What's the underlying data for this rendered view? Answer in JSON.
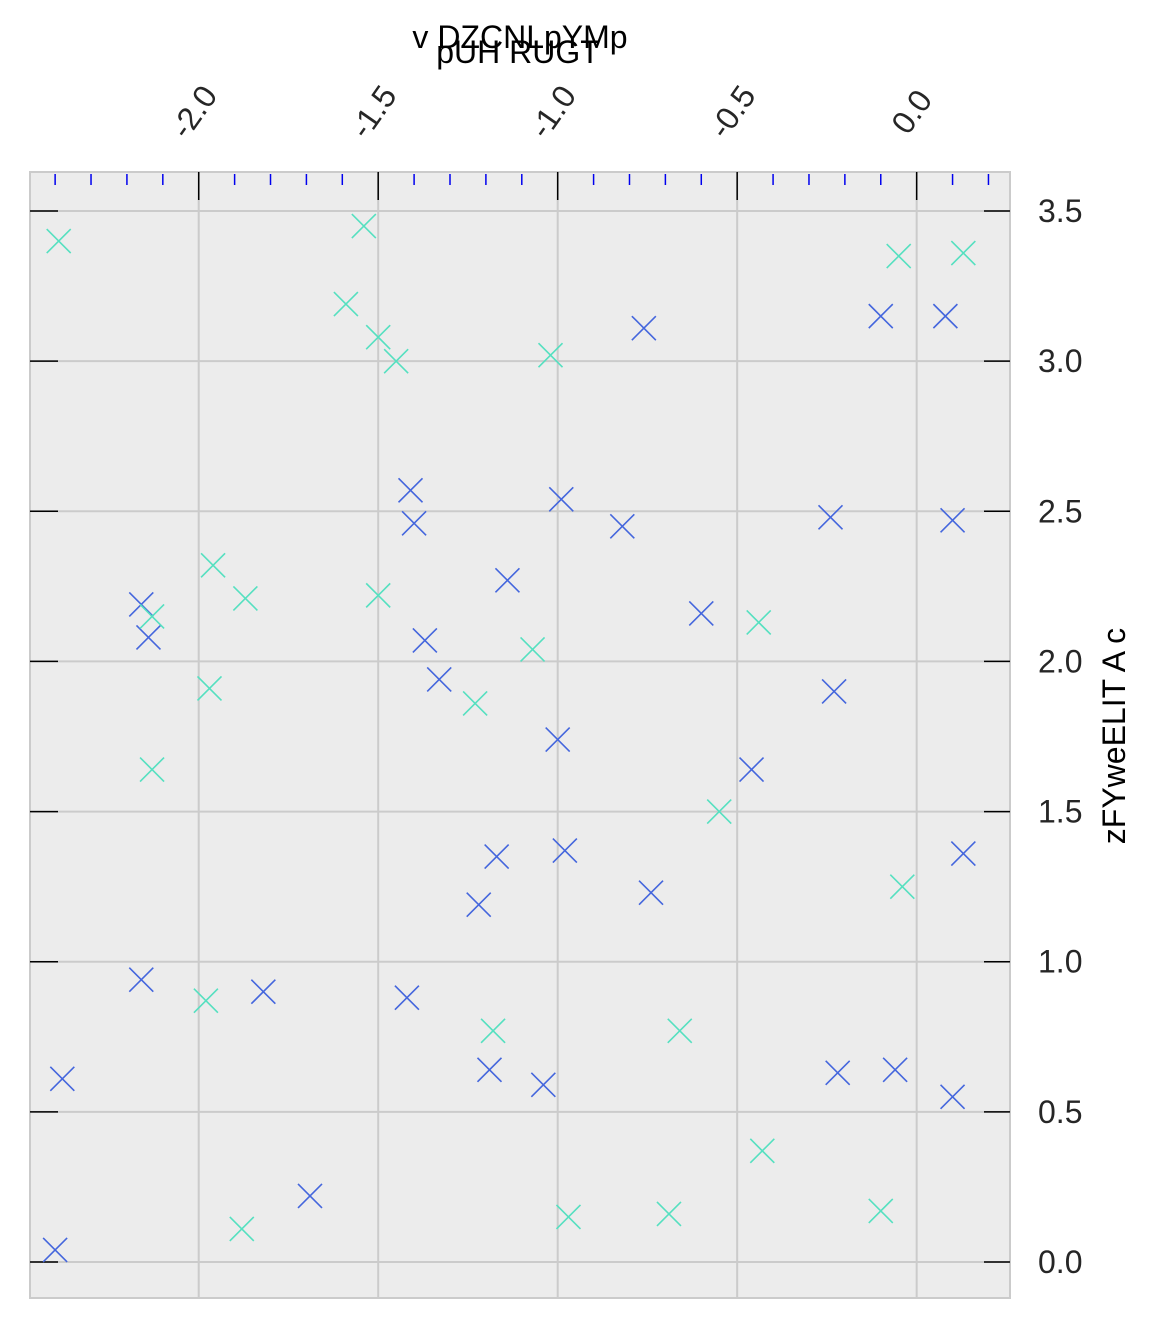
{
  "chart_data": {
    "type": "scatter",
    "title": "pUH RUGT",
    "xlabel": "v DZCNLpYMp",
    "ylabel": "zFYweELIT A c",
    "x_axis_position": "top",
    "y_axis_position": "right",
    "xlim": [
      -2.47,
      0.26
    ],
    "ylim": [
      -0.12,
      3.63
    ],
    "x_ticks": [
      -2.0,
      -1.5,
      -1.0,
      -0.5,
      0.0
    ],
    "x_tick_labels": [
      "-2.0",
      "-1.5",
      "-1.0",
      "-0.5",
      "0.0"
    ],
    "y_ticks": [
      0.0,
      0.5,
      1.0,
      1.5,
      2.0,
      2.5,
      3.0,
      3.5
    ],
    "y_tick_labels": [
      "0.0",
      "0.5",
      "1.0",
      "1.5",
      "2.0",
      "2.5",
      "3.0",
      "3.5"
    ],
    "x_minor_step": 0.1,
    "grid": true,
    "marker": "x",
    "colors": {
      "background": "#ececec",
      "grid": "#cbcbcb",
      "minor_tick": "#0000ee",
      "series_blue": "#4466dd",
      "series_cyan": "#55e0c0"
    },
    "series": [
      {
        "color": "#4466dd",
        "points": [
          [
            -2.4,
            0.04
          ],
          [
            -2.38,
            0.61
          ],
          [
            -2.16,
            0.94
          ],
          [
            -2.16,
            2.19
          ],
          [
            -2.14,
            2.08
          ],
          [
            -1.82,
            0.9
          ],
          [
            -1.69,
            0.22
          ],
          [
            -1.42,
            0.88
          ],
          [
            -1.41,
            2.57
          ],
          [
            -1.4,
            2.46
          ],
          [
            -1.37,
            2.07
          ],
          [
            -1.33,
            1.94
          ],
          [
            -1.22,
            1.19
          ],
          [
            -1.19,
            0.64
          ],
          [
            -1.17,
            1.35
          ],
          [
            -1.14,
            2.27
          ],
          [
            -1.04,
            0.59
          ],
          [
            -1.0,
            1.74
          ],
          [
            -0.99,
            2.54
          ],
          [
            -0.98,
            1.37
          ],
          [
            -0.82,
            2.45
          ],
          [
            -0.76,
            3.11
          ],
          [
            -0.74,
            1.23
          ],
          [
            -0.6,
            2.16
          ],
          [
            -0.46,
            1.64
          ],
          [
            -0.24,
            2.48
          ],
          [
            -0.23,
            1.9
          ],
          [
            -0.22,
            0.63
          ],
          [
            -0.1,
            3.15
          ],
          [
            -0.06,
            0.64
          ],
          [
            0.08,
            3.15
          ],
          [
            0.1,
            2.47
          ],
          [
            0.1,
            0.55
          ],
          [
            0.13,
            1.36
          ]
        ]
      },
      {
        "color": "#55e0c0",
        "points": [
          [
            -2.39,
            3.4
          ],
          [
            -2.13,
            1.64
          ],
          [
            -2.13,
            2.15
          ],
          [
            -1.98,
            0.87
          ],
          [
            -1.97,
            1.91
          ],
          [
            -1.96,
            2.32
          ],
          [
            -1.88,
            0.11
          ],
          [
            -1.87,
            2.21
          ],
          [
            -1.59,
            3.19
          ],
          [
            -1.54,
            3.45
          ],
          [
            -1.5,
            3.08
          ],
          [
            -1.5,
            2.22
          ],
          [
            -1.45,
            3.0
          ],
          [
            -1.23,
            1.86
          ],
          [
            -1.18,
            0.77
          ],
          [
            -1.07,
            2.04
          ],
          [
            -1.02,
            3.02
          ],
          [
            -0.97,
            0.15
          ],
          [
            -0.69,
            0.16
          ],
          [
            -0.66,
            0.77
          ],
          [
            -0.55,
            1.5
          ],
          [
            -0.44,
            2.13
          ],
          [
            -0.43,
            0.37
          ],
          [
            -0.1,
            0.17
          ],
          [
            -0.05,
            3.35
          ],
          [
            -0.04,
            1.25
          ],
          [
            0.13,
            3.36
          ]
        ]
      }
    ]
  }
}
